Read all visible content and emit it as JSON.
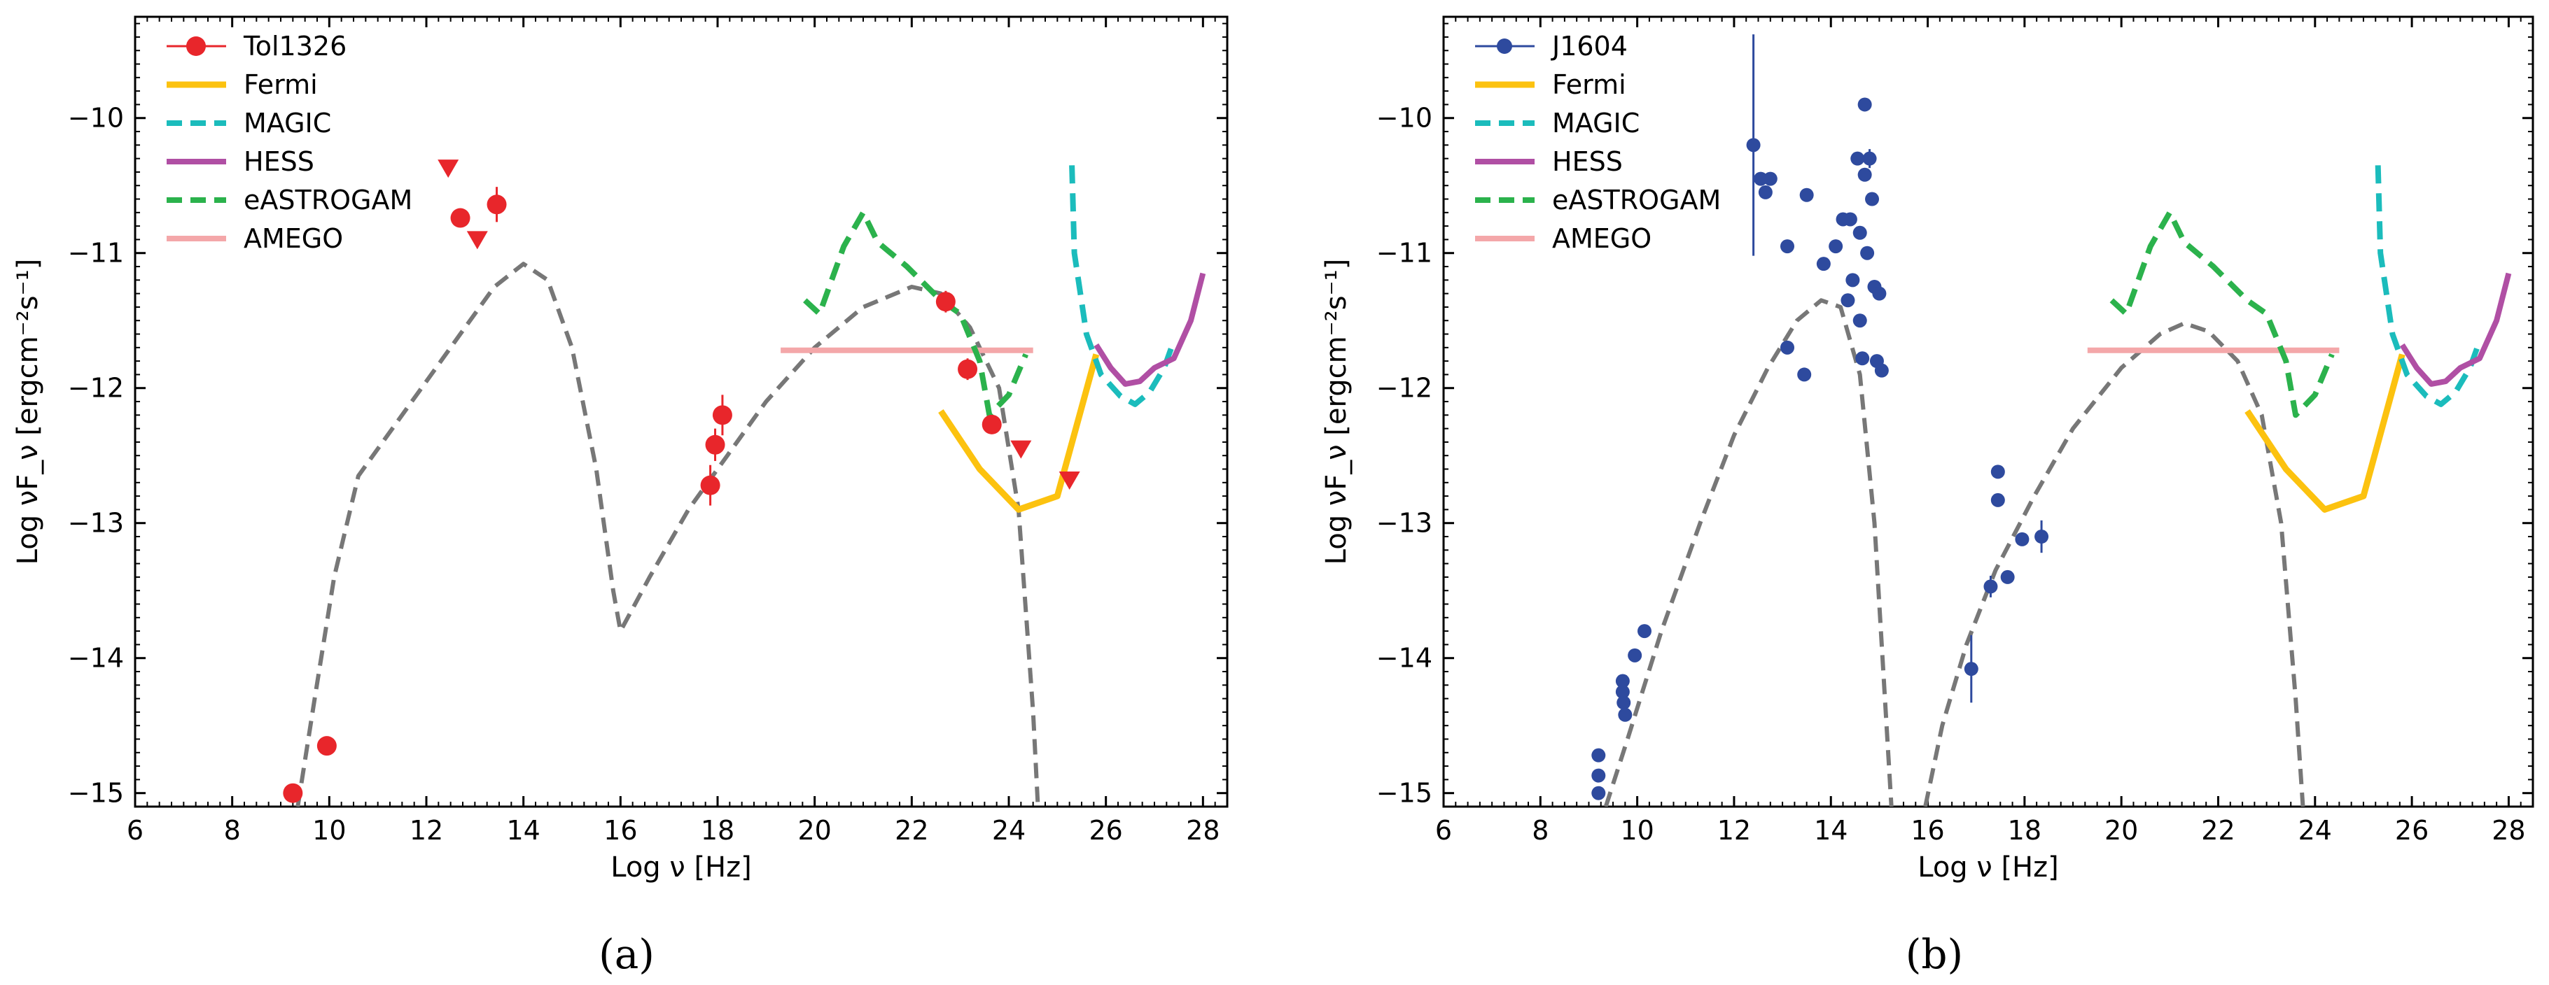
{
  "figure": {
    "panel_a_label": "(a)",
    "panel_b_label": "(b)"
  },
  "colors": {
    "tol_points": "#e8262b",
    "j_points": "#2e4a9e",
    "fermi": "#fcc20f",
    "magic": "#1bbcbc",
    "hess": "#b04fa4",
    "eastrogam": "#2bb24c",
    "amego": "#f4a7a9",
    "model": "#777777"
  },
  "chart_data": [
    {
      "panel": "a",
      "type": "scatter",
      "xlabel": "Log ν [Hz]",
      "ylabel": "Log νF_ν [ergcm⁻²s⁻¹]",
      "xlim": [
        6,
        28.5
      ],
      "ylim": [
        -15.1,
        -9.25
      ],
      "xticks": [
        "6",
        "8",
        "10",
        "12",
        "14",
        "16",
        "18",
        "20",
        "22",
        "24",
        "26",
        "28"
      ],
      "yticks": [
        "−15",
        "−14",
        "−13",
        "−12",
        "−11",
        "−10"
      ],
      "legend": [
        "Tol1326",
        "Fermi",
        "MAGIC",
        "HESS",
        "eASTROGAM",
        "AMEGO"
      ],
      "points": [
        {
          "x": 9.25,
          "y": -15.0,
          "err": 0
        },
        {
          "x": 9.95,
          "y": -14.65,
          "err": 0
        },
        {
          "x": 12.7,
          "y": -10.74,
          "err": 0
        },
        {
          "x": 13.45,
          "y": -10.64,
          "err": 0.13
        },
        {
          "x": 17.85,
          "y": -12.72,
          "err": 0.15
        },
        {
          "x": 17.95,
          "y": -12.42,
          "err": 0.12
        },
        {
          "x": 18.1,
          "y": -12.2,
          "err": 0.15
        },
        {
          "x": 22.7,
          "y": -11.36,
          "err": 0.08
        },
        {
          "x": 23.15,
          "y": -11.86,
          "err": 0.08
        },
        {
          "x": 23.65,
          "y": -12.27,
          "err": 0.06
        }
      ],
      "upper_limits": [
        {
          "x": 12.45,
          "y": -10.37
        },
        {
          "x": 13.05,
          "y": -10.9
        },
        {
          "x": 24.25,
          "y": -12.45
        },
        {
          "x": 25.25,
          "y": -12.68
        }
      ],
      "model": [
        [
          9.35,
          -15.1
        ],
        [
          9.7,
          -14.3
        ],
        [
          10.1,
          -13.4
        ],
        [
          10.6,
          -12.65
        ],
        [
          11.3,
          -12.3
        ],
        [
          12.0,
          -11.95
        ],
        [
          12.7,
          -11.6
        ],
        [
          13.4,
          -11.25
        ],
        [
          14.0,
          -11.08
        ],
        [
          14.5,
          -11.2
        ],
        [
          15.0,
          -11.7
        ],
        [
          15.5,
          -12.6
        ],
        [
          15.85,
          -13.5
        ],
        [
          16.0,
          -13.8
        ],
        [
          16.6,
          -13.4
        ],
        [
          17.4,
          -12.9
        ],
        [
          18.2,
          -12.5
        ],
        [
          19.0,
          -12.1
        ],
        [
          20.0,
          -11.7
        ],
        [
          21.0,
          -11.4
        ],
        [
          22.0,
          -11.25
        ],
        [
          22.6,
          -11.3
        ],
        [
          23.2,
          -11.55
        ],
        [
          23.8,
          -12.0
        ],
        [
          24.2,
          -12.9
        ],
        [
          24.5,
          -14.4
        ],
        [
          24.6,
          -15.1
        ]
      ]
    },
    {
      "panel": "b",
      "type": "scatter",
      "xlabel": "Log ν [Hz]",
      "ylabel": "Log νF_ν [ergcm⁻²s⁻¹]",
      "xlim": [
        6,
        28.5
      ],
      "ylim": [
        -15.1,
        -9.25
      ],
      "xticks": [
        "6",
        "8",
        "10",
        "12",
        "14",
        "16",
        "18",
        "20",
        "22",
        "24",
        "26",
        "28"
      ],
      "yticks": [
        "−15",
        "−14",
        "−13",
        "−12",
        "−11",
        "−10"
      ],
      "legend": [
        "J1604",
        "Fermi",
        "MAGIC",
        "HESS",
        "eASTROGAM",
        "AMEGO"
      ],
      "points": [
        {
          "x": 9.2,
          "y": -14.72,
          "err": 0
        },
        {
          "x": 9.2,
          "y": -14.87,
          "err": 0
        },
        {
          "x": 9.2,
          "y": -15.0,
          "err": 0
        },
        {
          "x": 9.7,
          "y": -14.17,
          "err": 0
        },
        {
          "x": 9.7,
          "y": -14.25,
          "err": 0
        },
        {
          "x": 9.72,
          "y": -14.33,
          "err": 0
        },
        {
          "x": 9.75,
          "y": -14.42,
          "err": 0
        },
        {
          "x": 9.95,
          "y": -13.98,
          "err": 0
        },
        {
          "x": 10.15,
          "y": -13.8,
          "err": 0
        },
        {
          "x": 12.4,
          "y": -10.2,
          "err": 0.82
        },
        {
          "x": 12.55,
          "y": -10.45,
          "err": 0
        },
        {
          "x": 12.65,
          "y": -10.55,
          "err": 0
        },
        {
          "x": 12.75,
          "y": -10.45,
          "err": 0
        },
        {
          "x": 13.1,
          "y": -10.95,
          "err": 0
        },
        {
          "x": 13.1,
          "y": -11.7,
          "err": 0
        },
        {
          "x": 13.5,
          "y": -10.57,
          "err": 0
        },
        {
          "x": 13.45,
          "y": -11.9,
          "err": 0
        },
        {
          "x": 13.85,
          "y": -11.08,
          "err": 0
        },
        {
          "x": 14.1,
          "y": -10.95,
          "err": 0
        },
        {
          "x": 14.25,
          "y": -10.75,
          "err": 0
        },
        {
          "x": 14.35,
          "y": -11.35,
          "err": 0
        },
        {
          "x": 14.4,
          "y": -10.75,
          "err": 0
        },
        {
          "x": 14.45,
          "y": -11.2,
          "err": 0
        },
        {
          "x": 14.55,
          "y": -10.3,
          "err": 0
        },
        {
          "x": 14.6,
          "y": -10.85,
          "err": 0
        },
        {
          "x": 14.6,
          "y": -11.5,
          "err": 0
        },
        {
          "x": 14.65,
          "y": -11.78,
          "err": 0
        },
        {
          "x": 14.7,
          "y": -9.9,
          "err": 0
        },
        {
          "x": 14.7,
          "y": -10.42,
          "err": 0
        },
        {
          "x": 14.75,
          "y": -11.0,
          "err": 0
        },
        {
          "x": 14.8,
          "y": -10.3,
          "err": 0.07
        },
        {
          "x": 14.85,
          "y": -10.6,
          "err": 0
        },
        {
          "x": 14.9,
          "y": -11.25,
          "err": 0
        },
        {
          "x": 14.95,
          "y": -11.8,
          "err": 0
        },
        {
          "x": 15.0,
          "y": -11.3,
          "err": 0
        },
        {
          "x": 15.05,
          "y": -11.87,
          "err": 0
        },
        {
          "x": 16.9,
          "y": -14.08,
          "err": 0.25
        },
        {
          "x": 17.3,
          "y": -13.47,
          "err": 0.08
        },
        {
          "x": 17.45,
          "y": -12.62,
          "err": 0
        },
        {
          "x": 17.45,
          "y": -12.83,
          "err": 0
        },
        {
          "x": 17.65,
          "y": -13.4,
          "err": 0
        },
        {
          "x": 17.95,
          "y": -13.12,
          "err": 0
        },
        {
          "x": 18.35,
          "y": -13.1,
          "err": 0.12
        }
      ],
      "upper_limits": [],
      "model_sync": [
        [
          9.35,
          -15.1
        ],
        [
          9.8,
          -14.6
        ],
        [
          10.5,
          -13.8
        ],
        [
          11.3,
          -13.0
        ],
        [
          12.0,
          -12.35
        ],
        [
          12.7,
          -11.85
        ],
        [
          13.3,
          -11.5
        ],
        [
          13.8,
          -11.35
        ],
        [
          14.2,
          -11.4
        ],
        [
          14.6,
          -11.9
        ],
        [
          14.9,
          -13.0
        ],
        [
          15.1,
          -14.2
        ],
        [
          15.25,
          -15.1
        ]
      ],
      "model_ic": [
        [
          15.95,
          -15.1
        ],
        [
          16.3,
          -14.5
        ],
        [
          16.8,
          -13.9
        ],
        [
          17.4,
          -13.35
        ],
        [
          18.2,
          -12.8
        ],
        [
          19.0,
          -12.3
        ],
        [
          20.0,
          -11.85
        ],
        [
          20.8,
          -11.6
        ],
        [
          21.3,
          -11.52
        ],
        [
          21.8,
          -11.58
        ],
        [
          22.4,
          -11.8
        ],
        [
          22.9,
          -12.2
        ],
        [
          23.3,
          -13.0
        ],
        [
          23.6,
          -14.3
        ],
        [
          23.75,
          -15.1
        ]
      ]
    }
  ],
  "sensitivity_curves": {
    "fermi": [
      [
        22.6,
        -12.17
      ],
      [
        23.4,
        -12.6
      ],
      [
        24.2,
        -12.9
      ],
      [
        25.0,
        -12.8
      ],
      [
        25.8,
        -11.75
      ]
    ],
    "magic": [
      [
        25.3,
        -10.35
      ],
      [
        25.35,
        -11.0
      ],
      [
        25.6,
        -11.6
      ],
      [
        25.9,
        -11.9
      ],
      [
        26.3,
        -12.06
      ],
      [
        26.6,
        -12.12
      ],
      [
        26.9,
        -12.03
      ],
      [
        27.2,
        -11.85
      ],
      [
        27.35,
        -11.7
      ]
    ],
    "hess": [
      [
        25.8,
        -11.68
      ],
      [
        26.1,
        -11.85
      ],
      [
        26.4,
        -11.97
      ],
      [
        26.7,
        -11.95
      ],
      [
        27.0,
        -11.85
      ],
      [
        27.4,
        -11.78
      ],
      [
        27.75,
        -11.5
      ],
      [
        28.0,
        -11.15
      ]
    ],
    "eastrogam": [
      [
        19.8,
        -11.35
      ],
      [
        20.1,
        -11.45
      ],
      [
        20.6,
        -10.95
      ],
      [
        21.0,
        -10.7
      ],
      [
        21.3,
        -10.92
      ],
      [
        21.9,
        -11.1
      ],
      [
        22.6,
        -11.35
      ],
      [
        23.0,
        -11.45
      ],
      [
        23.4,
        -11.8
      ],
      [
        23.6,
        -12.2
      ],
      [
        24.0,
        -12.05
      ],
      [
        24.35,
        -11.75
      ]
    ],
    "amego": [
      [
        19.3,
        -11.72
      ],
      [
        24.5,
        -11.72
      ]
    ]
  }
}
